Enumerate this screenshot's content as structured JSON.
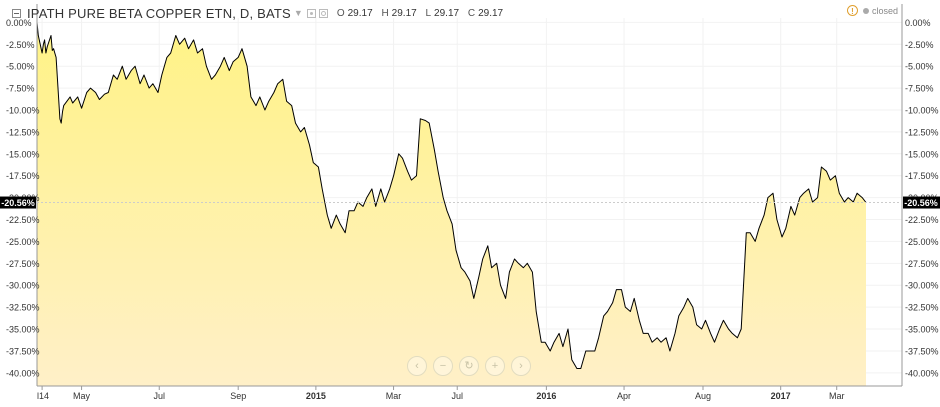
{
  "legend": {
    "title": "IPATH PURE BETA COPPER ETN, D, BATS",
    "ohlc": [
      {
        "k": "O",
        "v": "29.17"
      },
      {
        "k": "H",
        "v": "29.17"
      },
      {
        "k": "L",
        "v": "29.17"
      },
      {
        "k": "C",
        "v": "29.17"
      }
    ]
  },
  "status": {
    "label": "closed",
    "warning_glyph": "!"
  },
  "nav": [
    {
      "name": "scroll-left-icon",
      "glyph": "‹"
    },
    {
      "name": "zoom-out-icon",
      "glyph": "−"
    },
    {
      "name": "reset-icon",
      "glyph": "↻"
    },
    {
      "name": "zoom-in-icon",
      "glyph": "+"
    },
    {
      "name": "scroll-right-icon",
      "glyph": "›"
    }
  ],
  "colors": {
    "line": "#000000",
    "fill_top": "#fff385",
    "fill_bottom": "#fff0c8",
    "grid": "#f2f2f2",
    "axis_text": "#333333",
    "label_bg": "#000000",
    "label_text": "#ffffff"
  },
  "chart_data": {
    "type": "area",
    "x_unit": "date",
    "series": [
      {
        "points": [
          [
            "2014-03-27",
            0.0
          ],
          [
            "2014-03-28",
            -1.5
          ],
          [
            "2014-03-31",
            -3.5
          ],
          [
            "2014-04-01",
            -2.5
          ],
          [
            "2014-04-02",
            -2.0
          ],
          [
            "2014-04-03",
            -3.5
          ],
          [
            "2014-04-04",
            -2.8
          ],
          [
            "2014-04-07",
            -1.5
          ],
          [
            "2014-04-08",
            -3.2
          ],
          [
            "2014-04-09",
            -3.0
          ],
          [
            "2014-04-10",
            -3.5
          ],
          [
            "2014-04-11",
            -4.0
          ],
          [
            "2014-04-14",
            -11.0
          ],
          [
            "2014-04-15",
            -11.5
          ],
          [
            "2014-04-16",
            -10.2
          ],
          [
            "2014-04-17",
            -9.5
          ],
          [
            "2014-04-22",
            -8.5
          ],
          [
            "2014-04-24",
            -9.2
          ],
          [
            "2014-04-28",
            -8.5
          ],
          [
            "2014-05-01",
            -9.8
          ],
          [
            "2014-05-05",
            -8.0
          ],
          [
            "2014-05-08",
            -7.5
          ],
          [
            "2014-05-12",
            -8.0
          ],
          [
            "2014-05-15",
            -8.8
          ],
          [
            "2014-05-19",
            -8.2
          ],
          [
            "2014-05-22",
            -8.0
          ],
          [
            "2014-05-26",
            -6.0
          ],
          [
            "2014-05-29",
            -6.5
          ],
          [
            "2014-06-02",
            -5.0
          ],
          [
            "2014-06-05",
            -6.5
          ],
          [
            "2014-06-09",
            -5.5
          ],
          [
            "2014-06-12",
            -5.0
          ],
          [
            "2014-06-16",
            -7.0
          ],
          [
            "2014-06-19",
            -6.0
          ],
          [
            "2014-06-23",
            -7.5
          ],
          [
            "2014-06-26",
            -7.0
          ],
          [
            "2014-06-30",
            -8.0
          ],
          [
            "2014-07-03",
            -6.0
          ],
          [
            "2014-07-07",
            -4.0
          ],
          [
            "2014-07-10",
            -3.5
          ],
          [
            "2014-07-14",
            -1.5
          ],
          [
            "2014-07-17",
            -2.5
          ],
          [
            "2014-07-21",
            -1.8
          ],
          [
            "2014-07-24",
            -3.0
          ],
          [
            "2014-07-28",
            -2.0
          ],
          [
            "2014-07-31",
            -3.5
          ],
          [
            "2014-08-04",
            -3.0
          ],
          [
            "2014-08-07",
            -5.0
          ],
          [
            "2014-08-11",
            -6.5
          ],
          [
            "2014-08-14",
            -6.0
          ],
          [
            "2014-08-18",
            -5.0
          ],
          [
            "2014-08-21",
            -4.0
          ],
          [
            "2014-08-25",
            -5.5
          ],
          [
            "2014-08-28",
            -4.5
          ],
          [
            "2014-09-01",
            -4.0
          ],
          [
            "2014-09-04",
            -3.0
          ],
          [
            "2014-09-08",
            -5.0
          ],
          [
            "2014-09-11",
            -8.5
          ],
          [
            "2014-09-15",
            -9.5
          ],
          [
            "2014-09-18",
            -8.5
          ],
          [
            "2014-09-22",
            -10.0
          ],
          [
            "2014-09-25",
            -9.0
          ],
          [
            "2014-09-29",
            -8.0
          ],
          [
            "2014-10-02",
            -7.0
          ],
          [
            "2014-10-06",
            -6.5
          ],
          [
            "2014-10-09",
            -9.0
          ],
          [
            "2014-10-13",
            -9.5
          ],
          [
            "2014-10-16",
            -11.5
          ],
          [
            "2014-10-20",
            -12.5
          ],
          [
            "2014-10-23",
            -12.0
          ],
          [
            "2014-10-27",
            -14.0
          ],
          [
            "2014-10-30",
            -16.0
          ],
          [
            "2014-11-03",
            -16.5
          ],
          [
            "2014-11-06",
            -19.0
          ],
          [
            "2014-11-10",
            -22.0
          ],
          [
            "2014-11-13",
            -23.5
          ],
          [
            "2014-11-17",
            -22.0
          ],
          [
            "2014-11-20",
            -23.0
          ],
          [
            "2014-11-24",
            -24.0
          ],
          [
            "2014-11-27",
            -21.5
          ],
          [
            "2014-12-01",
            -21.5
          ],
          [
            "2014-12-04",
            -20.5
          ],
          [
            "2014-12-08",
            -21.0
          ],
          [
            "2014-12-11",
            -20.0
          ],
          [
            "2014-12-15",
            -19.0
          ],
          [
            "2014-12-18",
            -21.0
          ],
          [
            "2014-12-22",
            -19.0
          ],
          [
            "2014-12-25",
            -20.5
          ],
          [
            "2014-12-29",
            -19.0
          ],
          [
            "2015-01-01",
            -17.5
          ],
          [
            "2015-01-05",
            -15.0
          ],
          [
            "2015-01-08",
            -15.5
          ],
          [
            "2015-01-12",
            -17.0
          ],
          [
            "2015-01-15",
            -18.0
          ],
          [
            "2015-01-19",
            -17.5
          ],
          [
            "2015-01-22",
            -11.0
          ],
          [
            "2015-01-26",
            -11.2
          ],
          [
            "2015-01-29",
            -11.5
          ],
          [
            "2015-02-02",
            -14.5
          ],
          [
            "2015-02-05",
            -17.0
          ],
          [
            "2015-02-09",
            -20.0
          ],
          [
            "2015-02-12",
            -21.5
          ],
          [
            "2015-02-16",
            -23.0
          ],
          [
            "2015-02-19",
            -26.0
          ],
          [
            "2015-02-23",
            -28.0
          ],
          [
            "2015-02-26",
            -28.5
          ],
          [
            "2015-03-02",
            -29.5
          ],
          [
            "2015-03-05",
            -31.5
          ],
          [
            "2015-03-09",
            -29.0
          ],
          [
            "2015-03-12",
            -27.0
          ],
          [
            "2015-03-16",
            -25.5
          ],
          [
            "2015-03-19",
            -28.0
          ],
          [
            "2015-03-23",
            -27.5
          ],
          [
            "2015-03-26",
            -30.0
          ],
          [
            "2015-03-30",
            -31.5
          ],
          [
            "2015-04-02",
            -28.5
          ],
          [
            "2015-04-06",
            -27.0
          ],
          [
            "2015-04-09",
            -27.5
          ],
          [
            "2015-04-13",
            -28.0
          ],
          [
            "2015-04-16",
            -27.5
          ],
          [
            "2015-04-20",
            -28.5
          ],
          [
            "2015-04-23",
            -33.0
          ],
          [
            "2015-04-27",
            -36.5
          ],
          [
            "2015-04-30",
            -36.5
          ],
          [
            "2015-05-04",
            -37.5
          ],
          [
            "2015-05-07",
            -36.5
          ],
          [
            "2015-05-11",
            -35.5
          ],
          [
            "2015-05-14",
            -37.0
          ],
          [
            "2015-05-18",
            -35.0
          ],
          [
            "2015-05-21",
            -38.5
          ],
          [
            "2015-05-25",
            -39.5
          ],
          [
            "2015-05-28",
            -39.5
          ],
          [
            "2015-06-01",
            -37.5
          ],
          [
            "2015-06-04",
            -37.5
          ],
          [
            "2015-06-08",
            -37.5
          ],
          [
            "2015-06-11",
            -36.0
          ],
          [
            "2015-06-15",
            -33.5
          ],
          [
            "2015-06-18",
            -33.0
          ],
          [
            "2015-06-22",
            -32.0
          ],
          [
            "2015-06-25",
            -30.5
          ],
          [
            "2015-06-29",
            -30.5
          ],
          [
            "2015-07-02",
            -32.5
          ],
          [
            "2015-07-06",
            -33.0
          ],
          [
            "2015-07-09",
            -31.5
          ],
          [
            "2015-07-13",
            -34.0
          ],
          [
            "2015-07-16",
            -35.5
          ],
          [
            "2015-07-20",
            -35.5
          ],
          [
            "2015-07-23",
            -36.5
          ],
          [
            "2015-07-27",
            -36.0
          ],
          [
            "2015-07-30",
            -36.5
          ],
          [
            "2015-08-03",
            -36.0
          ],
          [
            "2015-08-06",
            -37.5
          ],
          [
            "2015-08-10",
            -35.5
          ],
          [
            "2015-08-13",
            -33.5
          ],
          [
            "2015-08-17",
            -32.5
          ],
          [
            "2015-08-20",
            -31.5
          ],
          [
            "2015-08-24",
            -32.5
          ],
          [
            "2015-08-27",
            -34.5
          ],
          [
            "2015-08-31",
            -35.0
          ],
          [
            "2015-09-03",
            -34.0
          ],
          [
            "2015-09-07",
            -35.5
          ],
          [
            "2015-09-10",
            -36.5
          ],
          [
            "2015-09-14",
            -35.0
          ],
          [
            "2015-09-17",
            -34.0
          ],
          [
            "2015-09-21",
            -35.0
          ],
          [
            "2015-09-24",
            -35.5
          ],
          [
            "2015-09-28",
            -36.0
          ],
          [
            "2015-10-01",
            -35.0
          ],
          [
            "2015-10-05",
            -24.0
          ],
          [
            "2015-10-08",
            -24.0
          ],
          [
            "2015-10-12",
            -25.0
          ],
          [
            "2015-10-15",
            -23.5
          ],
          [
            "2015-10-19",
            -22.0
          ],
          [
            "2015-10-22",
            -20.0
          ],
          [
            "2015-10-26",
            -19.5
          ],
          [
            "2015-10-29",
            -22.5
          ],
          [
            "2015-11-02",
            -24.5
          ],
          [
            "2015-11-05",
            -23.5
          ],
          [
            "2015-11-09",
            -21.0
          ],
          [
            "2015-11-12",
            -22.0
          ],
          [
            "2015-11-16",
            -20.0
          ],
          [
            "2015-11-19",
            -19.5
          ],
          [
            "2015-11-23",
            -19.0
          ],
          [
            "2015-11-26",
            -20.5
          ],
          [
            "2015-11-30",
            -20.0
          ],
          [
            "2015-12-03",
            -16.5
          ],
          [
            "2015-12-07",
            -17.0
          ],
          [
            "2015-12-10",
            -18.0
          ],
          [
            "2015-12-14",
            -17.5
          ],
          [
            "2015-12-17",
            -19.5
          ],
          [
            "2015-12-21",
            -20.5
          ],
          [
            "2015-12-24",
            -20.0
          ],
          [
            "2015-12-28",
            -20.5
          ],
          [
            "2015-12-31",
            -19.5
          ],
          [
            "2016-01-04",
            -20.0
          ],
          [
            "2016-01-07",
            -20.56
          ]
        ]
      }
    ],
    "x_ticks": [
      {
        "date": "2014-03-31",
        "label": "l14"
      },
      {
        "date": "2014-05-01",
        "label": "May"
      },
      {
        "date": "2014-07-01",
        "label": "Jul"
      },
      {
        "date": "2014-09-01",
        "label": "Sep"
      },
      {
        "date": "2014-11-01",
        "label": "2015"
      },
      {
        "date": "2015-01-01",
        "label": "Mar"
      },
      {
        "date": "2015-02-20",
        "label": "Jul"
      },
      {
        "date": "2015-05-01",
        "label": "2016"
      },
      {
        "date": "2015-07-01",
        "label": "Apr"
      },
      {
        "date": "2015-09-01",
        "label": "Aug"
      },
      {
        "date": "2015-11-01",
        "label": "2017"
      },
      {
        "date": "2015-12-15",
        "label": "Mar"
      }
    ],
    "y_ticks": [
      "0.00%",
      "-2.50%",
      "-5.00%",
      "-7.50%",
      "-10.00%",
      "-12.50%",
      "-15.00%",
      "-17.50%",
      "-20.00%",
      "-22.50%",
      "-25.00%",
      "-27.50%",
      "-30.00%",
      "-32.50%",
      "-35.00%",
      "-37.50%",
      "-40.00%"
    ],
    "y_tick_values": [
      0,
      -2.5,
      -5,
      -7.5,
      -10,
      -12.5,
      -15,
      -17.5,
      -20,
      -22.5,
      -25,
      -27.5,
      -30,
      -32.5,
      -35,
      -37.5,
      -40
    ],
    "ylim": [
      -41.5,
      0.5
    ],
    "last_value": -20.56,
    "last_value_label": "-20.56%",
    "grid": true
  }
}
